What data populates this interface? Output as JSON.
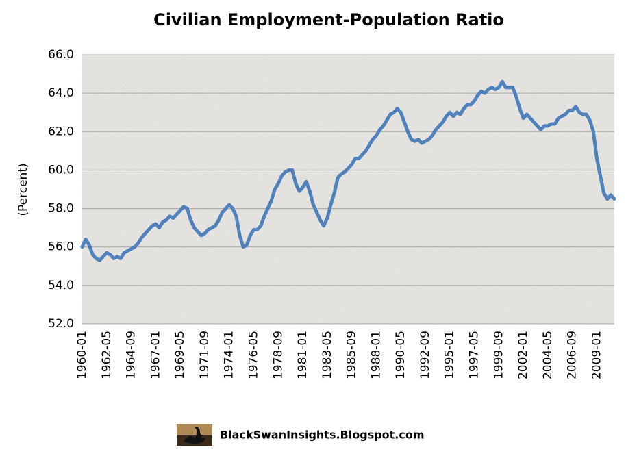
{
  "chart_data": {
    "type": "line",
    "title": "Civilian Employment-Population Ratio",
    "y_label": "(Percent)",
    "footer": "BlackSwanInsights.Blogspot.com",
    "color": "#4f81bd",
    "grid": true,
    "ylim": [
      52,
      66
    ],
    "yticks": [
      {
        "value": 52,
        "label": "52.0"
      },
      {
        "value": 54,
        "label": "54.0"
      },
      {
        "value": 56,
        "label": "56.0"
      },
      {
        "value": 58,
        "label": "58.0"
      },
      {
        "value": 60,
        "label": "60.0"
      },
      {
        "value": 62,
        "label": "62.0"
      },
      {
        "value": 64,
        "label": "64.0"
      },
      {
        "value": 66,
        "label": "66.0"
      }
    ],
    "categories": [
      "1960-01",
      null,
      null,
      null,
      null,
      null,
      null,
      "1962-05",
      null,
      null,
      null,
      null,
      null,
      null,
      "1964-09",
      null,
      null,
      null,
      null,
      null,
      null,
      "1967-01",
      null,
      null,
      null,
      null,
      null,
      null,
      "1969-05",
      null,
      null,
      null,
      null,
      null,
      null,
      "1971-09",
      null,
      null,
      null,
      null,
      null,
      null,
      "1974-01",
      null,
      null,
      null,
      null,
      null,
      null,
      "1976-05",
      null,
      null,
      null,
      null,
      null,
      null,
      "1978-09",
      null,
      null,
      null,
      null,
      null,
      null,
      "1981-01",
      null,
      null,
      null,
      null,
      null,
      null,
      "1983-05",
      null,
      null,
      null,
      null,
      null,
      null,
      "1985-09",
      null,
      null,
      null,
      null,
      null,
      null,
      "1988-01",
      null,
      null,
      null,
      null,
      null,
      null,
      "1990-05",
      null,
      null,
      null,
      null,
      null,
      null,
      "1992-09",
      null,
      null,
      null,
      null,
      null,
      null,
      "1995-01",
      null,
      null,
      null,
      null,
      null,
      null,
      "1997-05",
      null,
      null,
      null,
      null,
      null,
      null,
      "1999-09",
      null,
      null,
      null,
      null,
      null,
      null,
      "2002-01",
      null,
      null,
      null,
      null,
      null,
      null,
      "2004-05",
      null,
      null,
      null,
      null,
      null,
      null,
      "2006-09",
      null,
      null,
      null,
      null,
      null,
      null,
      "2009-01",
      null,
      null,
      null,
      null,
      null
    ],
    "values": [
      56.0,
      56.4,
      56.1,
      55.6,
      55.4,
      55.3,
      55.5,
      55.7,
      55.6,
      55.4,
      55.5,
      55.4,
      55.7,
      55.8,
      55.9,
      56.0,
      56.2,
      56.5,
      56.7,
      56.9,
      57.1,
      57.2,
      57.0,
      57.3,
      57.4,
      57.6,
      57.5,
      57.7,
      57.9,
      58.1,
      58.0,
      57.4,
      57.0,
      56.8,
      56.6,
      56.7,
      56.9,
      57.0,
      57.1,
      57.4,
      57.8,
      58.0,
      58.2,
      58.0,
      57.6,
      56.6,
      56.0,
      56.1,
      56.6,
      56.9,
      56.9,
      57.1,
      57.6,
      58.0,
      58.4,
      59.0,
      59.3,
      59.7,
      59.9,
      60.0,
      60.0,
      59.3,
      58.9,
      59.1,
      59.4,
      58.9,
      58.2,
      57.8,
      57.4,
      57.1,
      57.5,
      58.2,
      58.8,
      59.6,
      59.8,
      59.9,
      60.1,
      60.3,
      60.6,
      60.6,
      60.8,
      61.0,
      61.3,
      61.6,
      61.8,
      62.1,
      62.3,
      62.6,
      62.9,
      63.0,
      63.2,
      63.0,
      62.5,
      62.0,
      61.6,
      61.5,
      61.6,
      61.4,
      61.5,
      61.6,
      61.8,
      62.1,
      62.3,
      62.5,
      62.8,
      63.0,
      62.8,
      63.0,
      62.9,
      63.2,
      63.4,
      63.4,
      63.6,
      63.9,
      64.1,
      64.0,
      64.2,
      64.3,
      64.2,
      64.3,
      64.6,
      64.3,
      64.3,
      64.3,
      63.8,
      63.2,
      62.7,
      62.9,
      62.7,
      62.5,
      62.3,
      62.1,
      62.3,
      62.3,
      62.4,
      62.4,
      62.7,
      62.8,
      62.9,
      63.1,
      63.1,
      63.3,
      63.0,
      62.9,
      62.9,
      62.6,
      62.0,
      60.6,
      59.7,
      58.8,
      58.5,
      58.7,
      58.5
    ]
  }
}
